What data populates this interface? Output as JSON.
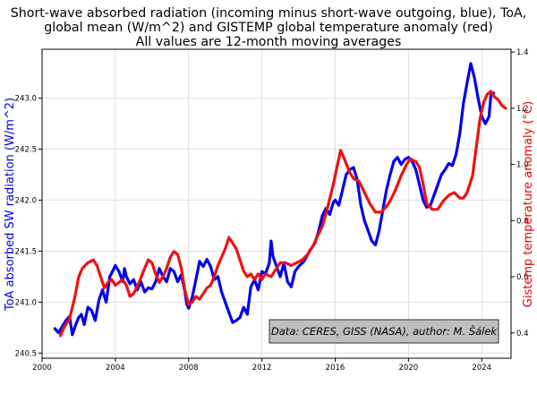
{
  "chart_data": {
    "type": "line",
    "title_lines": [
      "Short-wave absorbed radiation (incoming minus short-wave outgoing, blue), ToA,",
      "global mean (W/m^2) and GISTEMP global temperature anomaly (red)",
      "All values are 12-month moving averages"
    ],
    "ylabel_left": "ToA absorbed SW radiation (W/m^2)",
    "ylabel_right": "Gistemp temperature anomaly (°C)",
    "annotation": "Data: CERES, GISS (NASA), author: M. Šálek",
    "grid": true,
    "xlim": [
      2000,
      2025.6
    ],
    "ylim_left": [
      240.45,
      243.48
    ],
    "ylim_right": [
      0.31,
      1.41
    ],
    "x_ticks": [
      2000,
      2004,
      2008,
      2012,
      2016,
      2020,
      2024
    ],
    "x_tick_labels": [
      "2000",
      "2004",
      "2008",
      "2012",
      "2016",
      "2020",
      "2024"
    ],
    "y_left_ticks": [
      240.5,
      241.0,
      241.5,
      242.0,
      242.5,
      243.0
    ],
    "y_left_tick_labels": [
      "240.5",
      "241.0",
      "241.5",
      "242.0",
      "242.5",
      "243.0"
    ],
    "y_right_ticks": [
      0.4,
      0.6,
      0.8,
      1.0,
      1.2,
      1.4
    ],
    "y_right_tick_labels": [
      "0.4",
      "0.6",
      "0.8",
      "1.0",
      "1.2",
      "1.4"
    ],
    "colors": {
      "sw": "#0000ee",
      "temp": "#ee1111"
    },
    "series": [
      {
        "axis": "left",
        "points": [
          [
            2000.7,
            240.74
          ],
          [
            2000.9,
            240.7
          ],
          [
            2001.1,
            240.76
          ],
          [
            2001.3,
            240.82
          ],
          [
            2001.5,
            240.86
          ],
          [
            2001.65,
            240.68
          ],
          [
            2001.8,
            240.76
          ],
          [
            2002.0,
            240.85
          ],
          [
            2002.15,
            240.88
          ],
          [
            2002.3,
            240.78
          ],
          [
            2002.5,
            240.95
          ],
          [
            2002.7,
            240.92
          ],
          [
            2002.9,
            240.82
          ],
          [
            2003.1,
            241.02
          ],
          [
            2003.3,
            241.12
          ],
          [
            2003.5,
            241.0
          ],
          [
            2003.7,
            241.25
          ],
          [
            2003.9,
            241.32
          ],
          [
            2004.0,
            241.36
          ],
          [
            2004.2,
            241.3
          ],
          [
            2004.4,
            241.2
          ],
          [
            2004.5,
            241.33
          ],
          [
            2004.6,
            241.25
          ],
          [
            2004.8,
            241.18
          ],
          [
            2005.0,
            241.22
          ],
          [
            2005.2,
            241.12
          ],
          [
            2005.4,
            241.2
          ],
          [
            2005.6,
            241.1
          ],
          [
            2005.8,
            241.14
          ],
          [
            2006.0,
            241.13
          ],
          [
            2006.2,
            241.2
          ],
          [
            2006.4,
            241.33
          ],
          [
            2006.6,
            241.25
          ],
          [
            2006.8,
            241.2
          ],
          [
            2007.0,
            241.33
          ],
          [
            2007.2,
            241.3
          ],
          [
            2007.4,
            241.2
          ],
          [
            2007.6,
            241.27
          ],
          [
            2007.8,
            241.1
          ],
          [
            2007.9,
            240.98
          ],
          [
            2008.0,
            240.94
          ],
          [
            2008.2,
            241.05
          ],
          [
            2008.4,
            241.22
          ],
          [
            2008.6,
            241.4
          ],
          [
            2008.8,
            241.35
          ],
          [
            2009.0,
            241.42
          ],
          [
            2009.2,
            241.35
          ],
          [
            2009.4,
            241.22
          ],
          [
            2009.6,
            241.25
          ],
          [
            2009.8,
            241.1
          ],
          [
            2010.0,
            241.0
          ],
          [
            2010.2,
            240.9
          ],
          [
            2010.4,
            240.8
          ],
          [
            2010.6,
            240.82
          ],
          [
            2010.8,
            240.85
          ],
          [
            2011.0,
            240.95
          ],
          [
            2011.2,
            240.88
          ],
          [
            2011.4,
            241.15
          ],
          [
            2011.6,
            241.22
          ],
          [
            2011.8,
            241.12
          ],
          [
            2012.0,
            241.3
          ],
          [
            2012.2,
            241.28
          ],
          [
            2012.4,
            241.38
          ],
          [
            2012.5,
            241.6
          ],
          [
            2012.6,
            241.45
          ],
          [
            2012.8,
            241.35
          ],
          [
            2013.0,
            241.25
          ],
          [
            2013.2,
            241.38
          ],
          [
            2013.4,
            241.2
          ],
          [
            2013.6,
            241.15
          ],
          [
            2013.8,
            241.3
          ],
          [
            2014.0,
            241.35
          ],
          [
            2014.3,
            241.4
          ],
          [
            2014.6,
            241.5
          ],
          [
            2014.9,
            241.58
          ],
          [
            2015.1,
            241.7
          ],
          [
            2015.3,
            241.85
          ],
          [
            2015.5,
            241.92
          ],
          [
            2015.7,
            241.86
          ],
          [
            2015.9,
            241.98
          ],
          [
            2016.0,
            242.0
          ],
          [
            2016.2,
            241.95
          ],
          [
            2016.4,
            242.1
          ],
          [
            2016.6,
            242.25
          ],
          [
            2016.8,
            242.3
          ],
          [
            2017.0,
            242.32
          ],
          [
            2017.2,
            242.2
          ],
          [
            2017.4,
            241.95
          ],
          [
            2017.6,
            241.8
          ],
          [
            2017.8,
            241.7
          ],
          [
            2018.0,
            241.6
          ],
          [
            2018.2,
            241.56
          ],
          [
            2018.4,
            241.7
          ],
          [
            2018.6,
            241.9
          ],
          [
            2018.8,
            242.1
          ],
          [
            2019.0,
            242.25
          ],
          [
            2019.2,
            242.38
          ],
          [
            2019.4,
            242.42
          ],
          [
            2019.6,
            242.35
          ],
          [
            2019.8,
            242.4
          ],
          [
            2020.0,
            242.42
          ],
          [
            2020.2,
            242.38
          ],
          [
            2020.4,
            242.3
          ],
          [
            2020.6,
            242.15
          ],
          [
            2020.8,
            242.0
          ],
          [
            2021.0,
            241.93
          ],
          [
            2021.2,
            241.95
          ],
          [
            2021.4,
            242.05
          ],
          [
            2021.6,
            242.15
          ],
          [
            2021.8,
            242.25
          ],
          [
            2022.0,
            242.3
          ],
          [
            2022.2,
            242.36
          ],
          [
            2022.4,
            242.34
          ],
          [
            2022.6,
            242.45
          ],
          [
            2022.8,
            242.65
          ],
          [
            2023.0,
            242.95
          ],
          [
            2023.2,
            243.15
          ],
          [
            2023.4,
            243.34
          ],
          [
            2023.6,
            243.2
          ],
          [
            2023.8,
            243.0
          ],
          [
            2024.0,
            242.82
          ],
          [
            2024.2,
            242.75
          ],
          [
            2024.4,
            242.82
          ],
          [
            2024.5,
            243.03
          ],
          [
            2024.65,
            243.05
          ]
        ]
      },
      {
        "axis": "right",
        "points": [
          [
            2001.0,
            0.39
          ],
          [
            2001.2,
            0.42
          ],
          [
            2001.5,
            0.45
          ],
          [
            2001.8,
            0.53
          ],
          [
            2002.0,
            0.6
          ],
          [
            2002.2,
            0.63
          ],
          [
            2002.5,
            0.65
          ],
          [
            2002.8,
            0.66
          ],
          [
            2003.0,
            0.64
          ],
          [
            2003.2,
            0.6
          ],
          [
            2003.4,
            0.56
          ],
          [
            2003.6,
            0.58
          ],
          [
            2003.8,
            0.59
          ],
          [
            2004.0,
            0.57
          ],
          [
            2004.2,
            0.58
          ],
          [
            2004.4,
            0.59
          ],
          [
            2004.6,
            0.57
          ],
          [
            2004.8,
            0.53
          ],
          [
            2005.0,
            0.54
          ],
          [
            2005.3,
            0.58
          ],
          [
            2005.6,
            0.63
          ],
          [
            2005.8,
            0.66
          ],
          [
            2006.0,
            0.65
          ],
          [
            2006.2,
            0.61
          ],
          [
            2006.4,
            0.58
          ],
          [
            2006.6,
            0.6
          ],
          [
            2006.8,
            0.63
          ],
          [
            2007.0,
            0.67
          ],
          [
            2007.2,
            0.69
          ],
          [
            2007.4,
            0.68
          ],
          [
            2007.6,
            0.63
          ],
          [
            2007.8,
            0.55
          ],
          [
            2008.0,
            0.5
          ],
          [
            2008.2,
            0.51
          ],
          [
            2008.4,
            0.53
          ],
          [
            2008.6,
            0.52
          ],
          [
            2008.8,
            0.54
          ],
          [
            2009.0,
            0.56
          ],
          [
            2009.2,
            0.57
          ],
          [
            2009.4,
            0.6
          ],
          [
            2009.6,
            0.64
          ],
          [
            2009.8,
            0.67
          ],
          [
            2010.0,
            0.7
          ],
          [
            2010.2,
            0.74
          ],
          [
            2010.4,
            0.72
          ],
          [
            2010.6,
            0.7
          ],
          [
            2010.8,
            0.66
          ],
          [
            2011.0,
            0.62
          ],
          [
            2011.2,
            0.6
          ],
          [
            2011.4,
            0.61
          ],
          [
            2011.6,
            0.59
          ],
          [
            2011.8,
            0.61
          ],
          [
            2012.0,
            0.59
          ],
          [
            2012.2,
            0.61
          ],
          [
            2012.5,
            0.6
          ],
          [
            2012.8,
            0.63
          ],
          [
            2013.0,
            0.65
          ],
          [
            2013.3,
            0.65
          ],
          [
            2013.6,
            0.64
          ],
          [
            2013.9,
            0.65
          ],
          [
            2014.2,
            0.66
          ],
          [
            2014.5,
            0.68
          ],
          [
            2014.8,
            0.71
          ],
          [
            2015.0,
            0.74
          ],
          [
            2015.3,
            0.78
          ],
          [
            2015.6,
            0.85
          ],
          [
            2015.9,
            0.93
          ],
          [
            2016.1,
            0.99
          ],
          [
            2016.3,
            1.05
          ],
          [
            2016.5,
            1.02
          ],
          [
            2016.8,
            0.97
          ],
          [
            2017.0,
            0.95
          ],
          [
            2017.3,
            0.94
          ],
          [
            2017.6,
            0.9
          ],
          [
            2017.9,
            0.86
          ],
          [
            2018.2,
            0.83
          ],
          [
            2018.5,
            0.83
          ],
          [
            2018.8,
            0.85
          ],
          [
            2019.0,
            0.87
          ],
          [
            2019.3,
            0.91
          ],
          [
            2019.6,
            0.96
          ],
          [
            2019.9,
            1.0
          ],
          [
            2020.1,
            1.02
          ],
          [
            2020.4,
            1.01
          ],
          [
            2020.6,
            0.99
          ],
          [
            2020.8,
            0.93
          ],
          [
            2021.0,
            0.86
          ],
          [
            2021.3,
            0.84
          ],
          [
            2021.6,
            0.84
          ],
          [
            2021.9,
            0.87
          ],
          [
            2022.2,
            0.89
          ],
          [
            2022.5,
            0.9
          ],
          [
            2022.8,
            0.88
          ],
          [
            2023.0,
            0.88
          ],
          [
            2023.2,
            0.9
          ],
          [
            2023.5,
            0.96
          ],
          [
            2023.7,
            1.06
          ],
          [
            2023.9,
            1.16
          ],
          [
            2024.1,
            1.22
          ],
          [
            2024.3,
            1.25
          ],
          [
            2024.5,
            1.26
          ],
          [
            2024.7,
            1.24
          ],
          [
            2024.9,
            1.23
          ],
          [
            2025.1,
            1.21
          ],
          [
            2025.3,
            1.2
          ]
        ]
      }
    ]
  }
}
